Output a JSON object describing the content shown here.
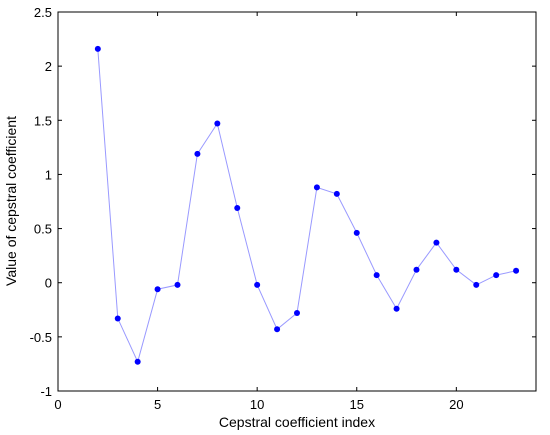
{
  "chart_data": {
    "type": "line",
    "title": "",
    "xlabel": "Cepstral coefficient index",
    "ylabel": "Value of cepstral coefficient",
    "xlim": [
      0,
      24
    ],
    "ylim": [
      -1,
      2.5
    ],
    "x_ticks": [
      0,
      5,
      10,
      15,
      20
    ],
    "x_tick_labels": [
      "0",
      "5",
      "10",
      "15",
      "20"
    ],
    "y_ticks": [
      -1,
      -0.5,
      0,
      0.5,
      1,
      1.5,
      2,
      2.5
    ],
    "y_tick_labels": [
      "-1",
      "-0.5",
      "0",
      "0.5",
      "1",
      "1.5",
      "2",
      "2.5"
    ],
    "grid": false,
    "legend": "none",
    "series": [
      {
        "line_color": "#9999ff",
        "marker_color": "#0000ff",
        "x": [
          2,
          3,
          4,
          5,
          6,
          7,
          8,
          9,
          10,
          11,
          12,
          13,
          14,
          15,
          16,
          17,
          18,
          19,
          20,
          21,
          22,
          23
        ],
        "y": [
          2.16,
          -0.33,
          -0.73,
          -0.06,
          -0.02,
          1.19,
          1.47,
          0.69,
          -0.02,
          -0.43,
          -0.28,
          0.88,
          0.82,
          0.46,
          0.07,
          -0.24,
          0.12,
          0.37,
          0.12,
          -0.02,
          0.07,
          0.11
        ]
      }
    ]
  }
}
